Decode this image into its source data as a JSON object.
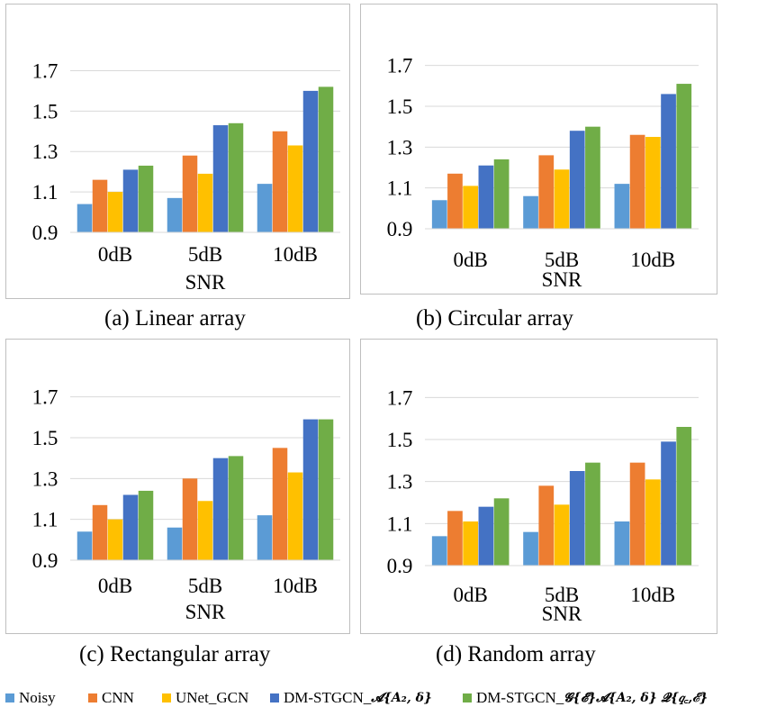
{
  "legend": {
    "items": [
      {
        "label": "Noisy",
        "color": "#5b9bd5"
      },
      {
        "label": "CNN",
        "color": "#ed7d31"
      },
      {
        "label": "UNet_GCN",
        "color": "#ffc000"
      },
      {
        "label": "DM-STGCN_",
        "label_math": "𝓐{𝑨₂, 𝜹}",
        "color": "#4472c4"
      },
      {
        "label": "DM-STGCN_",
        "label_math": "𝓖{𝓔}𝓐{𝑨₂, 𝜹} 𝓠{𝑞꜀,ℰ}",
        "color": "#70ad47"
      }
    ]
  },
  "chart_data": [
    {
      "type": "bar",
      "caption": "(a)  Linear array",
      "categories": [
        "0dB",
        "5dB",
        "10dB"
      ],
      "xlabel": "SNR",
      "ylim": [
        0.9,
        1.8
      ],
      "yticks": [
        "0.9",
        "1.1",
        "1.3",
        "1.5",
        "1.7"
      ],
      "series": [
        {
          "name": "Noisy",
          "values": [
            1.04,
            1.07,
            1.14
          ]
        },
        {
          "name": "CNN",
          "values": [
            1.16,
            1.28,
            1.4
          ]
        },
        {
          "name": "UNet_GCN",
          "values": [
            1.1,
            1.19,
            1.33
          ]
        },
        {
          "name": "DM-STGCN_A",
          "values": [
            1.21,
            1.43,
            1.6
          ]
        },
        {
          "name": "DM-STGCN_GAQ",
          "values": [
            1.23,
            1.44,
            1.62
          ]
        }
      ]
    },
    {
      "type": "bar",
      "caption": "(b) Circular array",
      "categories": [
        "0dB",
        "5dB",
        "10dB"
      ],
      "xlabel": "SNR",
      "ylim": [
        0.9,
        1.8
      ],
      "yticks": [
        "0.9",
        "1.1",
        "1.3",
        "1.5",
        "1.7"
      ],
      "series": [
        {
          "name": "Noisy",
          "values": [
            1.04,
            1.06,
            1.12
          ]
        },
        {
          "name": "CNN",
          "values": [
            1.17,
            1.26,
            1.36
          ]
        },
        {
          "name": "UNet_GCN",
          "values": [
            1.11,
            1.19,
            1.35
          ]
        },
        {
          "name": "DM-STGCN_A",
          "values": [
            1.21,
            1.38,
            1.56
          ]
        },
        {
          "name": "DM-STGCN_GAQ",
          "values": [
            1.24,
            1.4,
            1.61
          ]
        }
      ]
    },
    {
      "type": "bar",
      "caption": "(c) Rectangular array",
      "categories": [
        "0dB",
        "5dB",
        "10dB"
      ],
      "xlabel": "SNR",
      "ylim": [
        0.9,
        1.8
      ],
      "yticks": [
        "0.9",
        "1.1",
        "1.3",
        "1.5",
        "1.7"
      ],
      "series": [
        {
          "name": "Noisy",
          "values": [
            1.04,
            1.06,
            1.12
          ]
        },
        {
          "name": "CNN",
          "values": [
            1.17,
            1.3,
            1.45
          ]
        },
        {
          "name": "UNet_GCN",
          "values": [
            1.1,
            1.19,
            1.33
          ]
        },
        {
          "name": "DM-STGCN_A",
          "values": [
            1.22,
            1.4,
            1.59
          ]
        },
        {
          "name": "DM-STGCN_GAQ",
          "values": [
            1.24,
            1.41,
            1.59
          ]
        }
      ]
    },
    {
      "type": "bar",
      "caption": "(d) Random array",
      "categories": [
        "0dB",
        "5dB",
        "10dB"
      ],
      "xlabel": "SNR",
      "ylim": [
        0.9,
        1.8
      ],
      "yticks": [
        "0.9",
        "1.1",
        "1.3",
        "1.5",
        "1.7"
      ],
      "series": [
        {
          "name": "Noisy",
          "values": [
            1.04,
            1.06,
            1.11
          ]
        },
        {
          "name": "CNN",
          "values": [
            1.16,
            1.28,
            1.39
          ]
        },
        {
          "name": "UNet_GCN",
          "values": [
            1.11,
            1.19,
            1.31
          ]
        },
        {
          "name": "DM-STGCN_A",
          "values": [
            1.18,
            1.35,
            1.49
          ]
        },
        {
          "name": "DM-STGCN_GAQ",
          "values": [
            1.22,
            1.39,
            1.56
          ]
        }
      ]
    }
  ]
}
